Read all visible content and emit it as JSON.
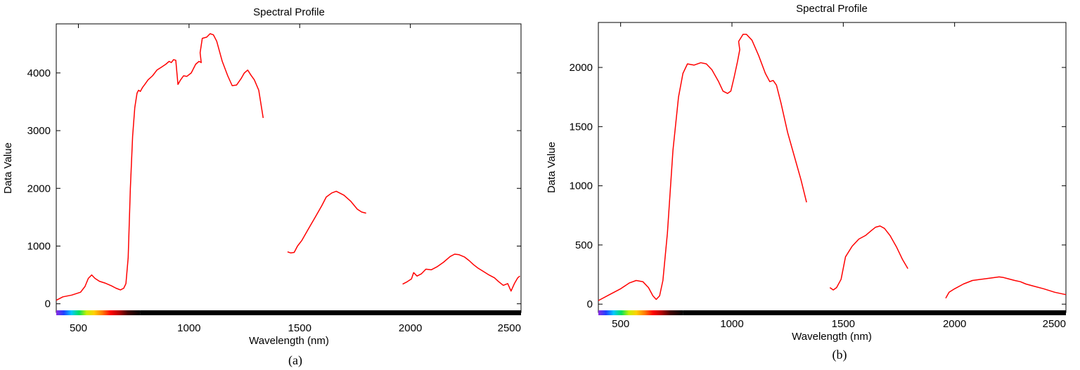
{
  "chart_data": [
    {
      "type": "line",
      "title": "Spectral Profile",
      "xlabel": "Wavelength (nm)",
      "ylabel": "Data Value",
      "caption": "(a)",
      "xlim": [
        400,
        2500
      ],
      "ylim": [
        -150,
        4850
      ],
      "xticks": [
        500,
        1000,
        1500,
        2000,
        2500
      ],
      "xtick_labels": [
        "500",
        "1000",
        "1500",
        "2000",
        "2500"
      ],
      "yticks": [
        0,
        1000,
        2000,
        3000,
        4000
      ],
      "ytick_labels": [
        "0",
        "1000",
        "2000",
        "3000",
        "4000"
      ],
      "series_color": "#ff0000",
      "series": [
        {
          "segments": [
            [
              [
                400,
                60
              ],
              [
                430,
                120
              ],
              [
                470,
                150
              ],
              [
                510,
                200
              ],
              [
                530,
                300
              ],
              [
                545,
                440
              ],
              [
                560,
                500
              ],
              [
                575,
                440
              ],
              [
                595,
                390
              ],
              [
                620,
                360
              ],
              [
                650,
                310
              ],
              [
                670,
                270
              ],
              [
                690,
                240
              ],
              [
                705,
                270
              ],
              [
                715,
                350
              ],
              [
                725,
                800
              ],
              [
                735,
                2000
              ],
              [
                745,
                2900
              ],
              [
                755,
                3400
              ],
              [
                765,
                3650
              ],
              [
                772,
                3700
              ],
              [
                780,
                3680
              ],
              [
                790,
                3750
              ],
              [
                800,
                3800
              ],
              [
                815,
                3880
              ],
              [
                835,
                3950
              ],
              [
                855,
                4050
              ],
              [
                875,
                4100
              ],
              [
                895,
                4150
              ],
              [
                910,
                4200
              ],
              [
                920,
                4180
              ],
              [
                930,
                4230
              ],
              [
                940,
                4220
              ],
              [
                950,
                3800
              ],
              [
                960,
                3870
              ],
              [
                975,
                3950
              ],
              [
                990,
                3940
              ],
              [
                1010,
                4000
              ],
              [
                1030,
                4150
              ],
              [
                1045,
                4200
              ],
              [
                1055,
                4180
              ],
              [
                1050,
                4350
              ],
              [
                1060,
                4600
              ],
              [
                1080,
                4620
              ],
              [
                1095,
                4680
              ],
              [
                1110,
                4660
              ],
              [
                1125,
                4550
              ],
              [
                1150,
                4200
              ],
              [
                1175,
                3950
              ],
              [
                1195,
                3780
              ],
              [
                1215,
                3790
              ],
              [
                1235,
                3900
              ],
              [
                1250,
                4000
              ],
              [
                1265,
                4050
              ],
              [
                1280,
                3960
              ],
              [
                1295,
                3880
              ],
              [
                1315,
                3700
              ],
              [
                1335,
                3220
              ]
            ],
            [
              [
                1445,
                900
              ],
              [
                1460,
                880
              ],
              [
                1475,
                890
              ],
              [
                1490,
                1000
              ],
              [
                1510,
                1100
              ],
              [
                1540,
                1300
              ],
              [
                1570,
                1500
              ],
              [
                1600,
                1700
              ],
              [
                1620,
                1850
              ],
              [
                1645,
                1920
              ],
              [
                1665,
                1950
              ],
              [
                1680,
                1920
              ],
              [
                1700,
                1880
              ],
              [
                1730,
                1780
              ],
              [
                1760,
                1640
              ],
              [
                1780,
                1590
              ],
              [
                1800,
                1570
              ]
            ],
            [
              [
                1965,
                340
              ],
              [
                1985,
                380
              ],
              [
                2005,
                430
              ],
              [
                2015,
                540
              ],
              [
                2030,
                480
              ],
              [
                2050,
                520
              ],
              [
                2070,
                600
              ],
              [
                2095,
                590
              ],
              [
                2120,
                640
              ],
              [
                2150,
                720
              ],
              [
                2180,
                820
              ],
              [
                2200,
                860
              ],
              [
                2220,
                850
              ],
              [
                2245,
                810
              ],
              [
                2265,
                750
              ],
              [
                2285,
                680
              ],
              [
                2305,
                620
              ],
              [
                2330,
                560
              ],
              [
                2355,
                500
              ],
              [
                2380,
                450
              ],
              [
                2400,
                380
              ],
              [
                2420,
                320
              ],
              [
                2440,
                350
              ],
              [
                2455,
                220
              ],
              [
                2470,
                350
              ],
              [
                2485,
                450
              ],
              [
                2495,
                480
              ]
            ]
          ]
        }
      ]
    },
    {
      "type": "line",
      "title": "Spectral Profile",
      "xlabel": "Wavelength (nm)",
      "ylabel": "Data Value",
      "caption": "(b)",
      "xlim": [
        400,
        2500
      ],
      "ylim": [
        -70,
        2380
      ],
      "xticks": [
        500,
        1000,
        1500,
        2000,
        2500
      ],
      "xtick_labels": [
        "500",
        "1000",
        "1500",
        "2000",
        "2500"
      ],
      "yticks": [
        0,
        500,
        1000,
        1500,
        2000
      ],
      "ytick_labels": [
        "0",
        "500",
        "1000",
        "1500",
        "2000"
      ],
      "series_color": "#ff0000",
      "series": [
        {
          "segments": [
            [
              [
                400,
                30
              ],
              [
                450,
                80
              ],
              [
                500,
                130
              ],
              [
                540,
                180
              ],
              [
                570,
                200
              ],
              [
                600,
                190
              ],
              [
                625,
                140
              ],
              [
                645,
                70
              ],
              [
                660,
                40
              ],
              [
                675,
                70
              ],
              [
                690,
                200
              ],
              [
                710,
                600
              ],
              [
                735,
                1300
              ],
              [
                760,
                1750
              ],
              [
                780,
                1950
              ],
              [
                800,
                2030
              ],
              [
                830,
                2020
              ],
              [
                860,
                2040
              ],
              [
                885,
                2030
              ],
              [
                910,
                1980
              ],
              [
                940,
                1880
              ],
              [
                960,
                1800
              ],
              [
                980,
                1780
              ],
              [
                995,
                1800
              ],
              [
                1010,
                1920
              ],
              [
                1025,
                2050
              ],
              [
                1035,
                2150
              ],
              [
                1030,
                2220
              ],
              [
                1050,
                2280
              ],
              [
                1065,
                2280
              ],
              [
                1090,
                2230
              ],
              [
                1120,
                2100
              ],
              [
                1150,
                1950
              ],
              [
                1170,
                1880
              ],
              [
                1185,
                1890
              ],
              [
                1200,
                1850
              ],
              [
                1220,
                1700
              ],
              [
                1250,
                1450
              ],
              [
                1280,
                1250
              ],
              [
                1310,
                1050
              ],
              [
                1335,
                860
              ]
            ],
            [
              [
                1440,
                140
              ],
              [
                1455,
                120
              ],
              [
                1470,
                140
              ],
              [
                1490,
                210
              ],
              [
                1510,
                400
              ],
              [
                1540,
                490
              ],
              [
                1570,
                550
              ],
              [
                1600,
                580
              ],
              [
                1625,
                620
              ],
              [
                1645,
                650
              ],
              [
                1665,
                660
              ],
              [
                1685,
                640
              ],
              [
                1710,
                580
              ],
              [
                1740,
                480
              ],
              [
                1765,
                380
              ],
              [
                1790,
                300
              ]
            ],
            [
              [
                1960,
                50
              ],
              [
                1975,
                100
              ],
              [
                2000,
                130
              ],
              [
                2040,
                170
              ],
              [
                2080,
                200
              ],
              [
                2120,
                210
              ],
              [
                2160,
                220
              ],
              [
                2200,
                230
              ],
              [
                2220,
                225
              ],
              [
                2240,
                215
              ],
              [
                2270,
                200
              ],
              [
                2295,
                190
              ],
              [
                2320,
                170
              ],
              [
                2350,
                155
              ],
              [
                2400,
                130
              ],
              [
                2450,
                100
              ],
              [
                2500,
                80
              ]
            ]
          ]
        }
      ]
    }
  ]
}
